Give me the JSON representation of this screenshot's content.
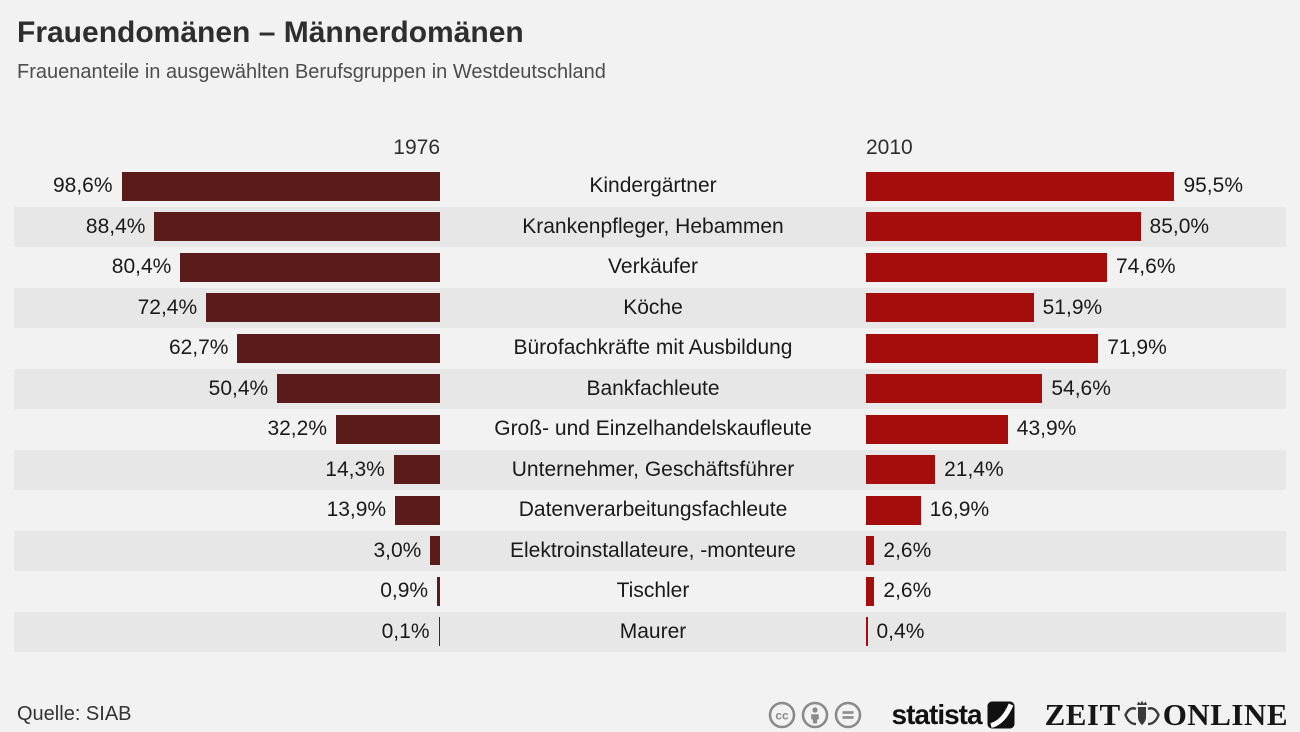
{
  "header": {
    "title": "Frauendomänen – Männerdomänen",
    "subtitle": "Frauenanteile in ausgewählten Berufsgruppen in Westdeutschland"
  },
  "chart_data": {
    "type": "bar",
    "title": "Frauendomänen – Männerdomänen",
    "subtitle": "Frauenanteile in ausgewählten Berufsgruppen in Westdeutschland",
    "layout": "diverging horizontal bars; category labels centered; 1976 bars grow leftward (right-aligned), 2010 bars grow rightward (left-aligned); alternating gray row stripes",
    "unit": "%",
    "xlim": [
      0,
      100
    ],
    "column_headers": [
      "1976",
      "2010"
    ],
    "categories": [
      "Kindergärtner",
      "Krankenpfleger, Hebammen",
      "Verkäufer",
      "Köche",
      "Bürofachkräfte mit Ausbildung",
      "Bankfachleute",
      "Groß- und Einzelhandelskaufleute",
      "Unternehmer, Geschäftsführer",
      "Datenverarbeitungsfachleute",
      "Elektroinstallateure, -monteure",
      "Tischler",
      "Maurer"
    ],
    "series": [
      {
        "name": "1976",
        "values": [
          98.6,
          88.4,
          80.4,
          72.4,
          62.7,
          50.4,
          32.2,
          14.3,
          13.9,
          3.0,
          0.9,
          0.1
        ]
      },
      {
        "name": "2010",
        "values": [
          95.5,
          85.0,
          74.6,
          51.9,
          71.9,
          54.6,
          43.9,
          21.4,
          16.9,
          2.6,
          2.6,
          0.4
        ]
      }
    ],
    "value_labels_1976": [
      "98,6%",
      "88,4%",
      "80,4%",
      "72,4%",
      "62,7%",
      "50,4%",
      "32,2%",
      "14,3%",
      "13,9%",
      "3,0%",
      "0,9%",
      "0,1%"
    ],
    "value_labels_2010": [
      "95,5%",
      "85,0%",
      "74,6%",
      "51,9%",
      "71,9%",
      "54,6%",
      "43,9%",
      "21,4%",
      "16,9%",
      "2,6%",
      "2,6%",
      "0,4%"
    ],
    "colors": {
      "series_1976": "#5b1b1b",
      "series_2010": "#a50d0d",
      "row_stripe": "#e7e7e7",
      "background": "#f2f2f2"
    }
  },
  "footer": {
    "source": "Quelle: SIAB",
    "license_icons": [
      "cc-icon",
      "cc-by-icon",
      "cc-nd-icon"
    ],
    "statista_label": "statista",
    "zeit": {
      "part1": "ZEIT",
      "part2": "ONLINE"
    }
  }
}
